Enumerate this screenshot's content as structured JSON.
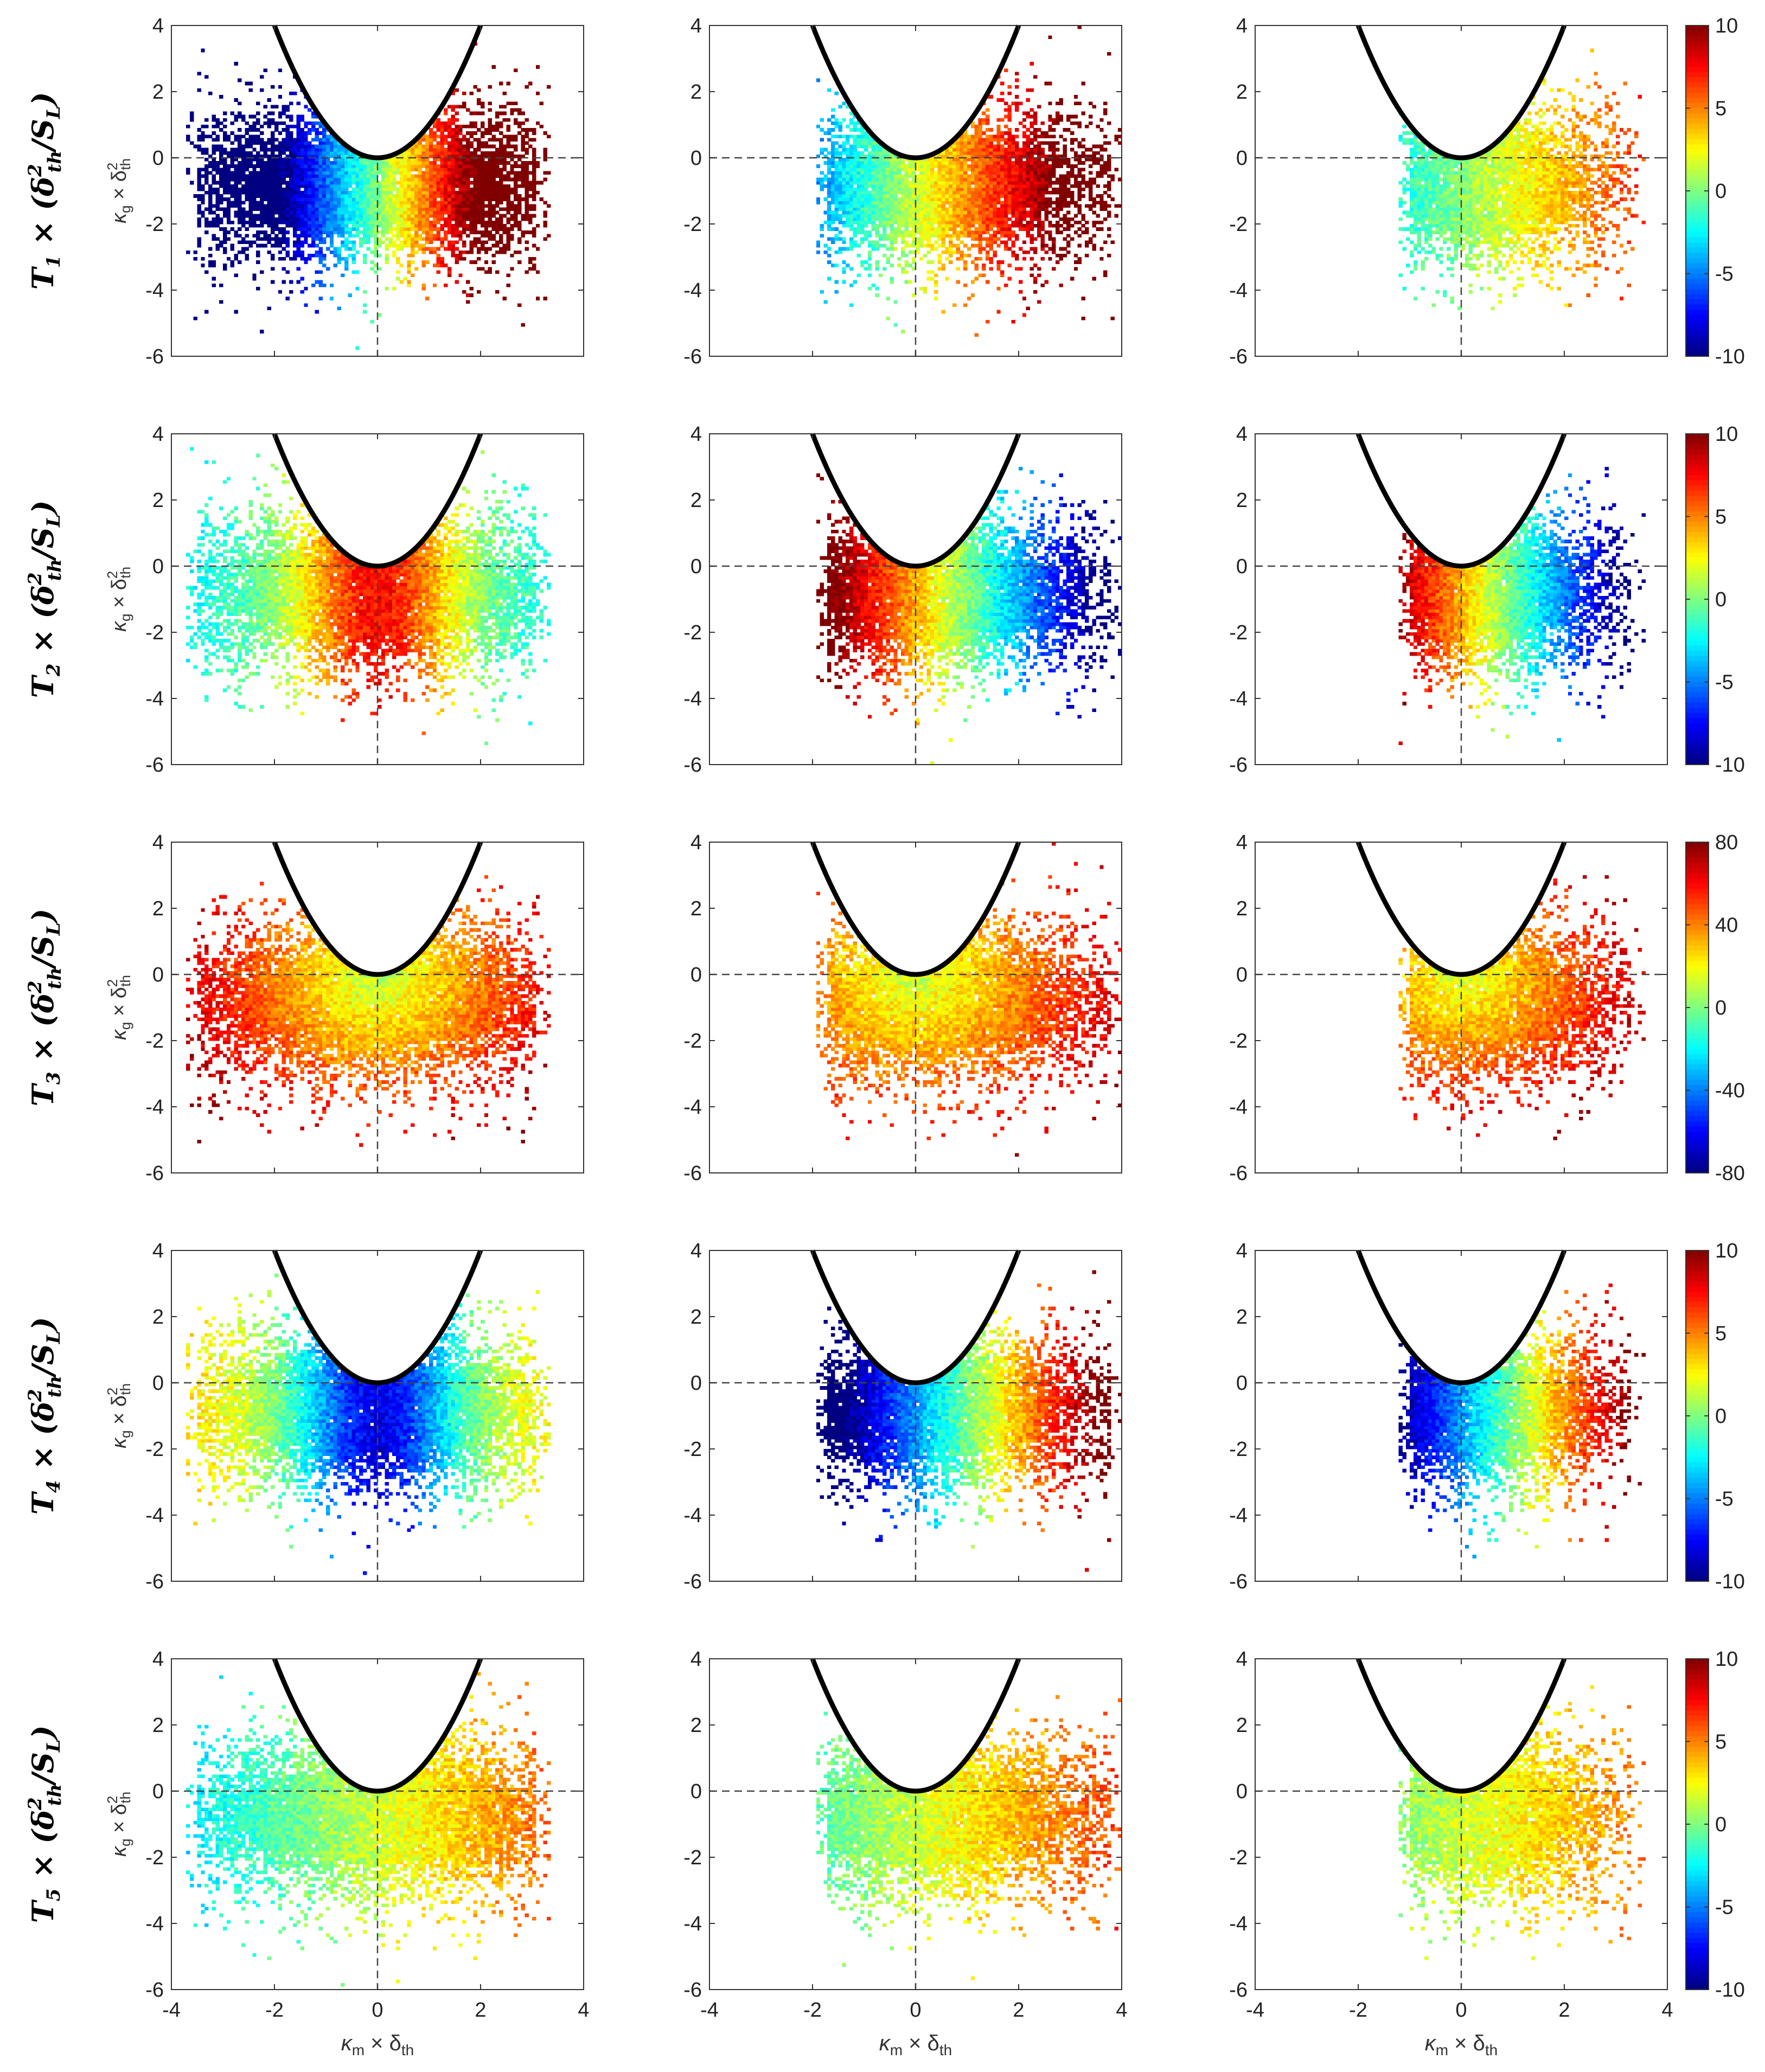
{
  "chart_data": {
    "type": "heatmap",
    "layout": {
      "rows": 5,
      "cols": 3
    },
    "x_axis": {
      "label": "κm × δth",
      "label_main": "κ",
      "label_sub": "m",
      "label_mid": " × δ",
      "label_sub2": "th",
      "lim": [
        -4,
        4
      ],
      "ticks": [
        -4,
        -2,
        0,
        2,
        4
      ]
    },
    "y_axis": {
      "label": "κg × δ²th",
      "label_main": "κ",
      "label_sub": "g",
      "label_mid": " × δ",
      "label_sup": "2",
      "label_sub2": "th",
      "lim": [
        -6,
        4
      ],
      "ticks": [
        -6,
        -4,
        -2,
        0,
        2,
        4
      ]
    },
    "boundary_curve": "κg = κm² (solid black parabola)",
    "reference_lines": "x = 0, y = 0 (dashed)",
    "colormap": "jet",
    "columns": [
      {
        "id": "col1",
        "kappa_m_range": [
          -3.5,
          3.1
        ]
      },
      {
        "id": "col2",
        "kappa_m_range": [
          -1.7,
          3.8
        ]
      },
      {
        "id": "col3",
        "kappa_m_range": [
          -1.0,
          3.3
        ]
      }
    ],
    "rows": [
      {
        "term": "T1",
        "row_label": {
          "pre": "T",
          "sub": "1",
          "rest": " × (δ",
          "sup": "2",
          "sub2": "th",
          "tail": "/S",
          "sub3": "L",
          "end": ")"
        },
        "colorbar": {
          "lim": [
            -10,
            10
          ],
          "ticks": [
            10,
            5,
            0,
            -5,
            -10
          ]
        },
        "panels": [
          {
            "trend": "linear_x",
            "a": 5.5,
            "c": 0
          },
          {
            "trend": "linear_x",
            "a": 3.2,
            "c": 1.5
          },
          {
            "trend": "linear_x",
            "a": 1.8,
            "c": 0.2
          }
        ]
      },
      {
        "term": "T2",
        "row_label": {
          "pre": "T",
          "sub": "2",
          "rest": " × (δ",
          "sup": "2",
          "sub2": "th",
          "tail": "/S",
          "sub3": "L",
          "end": ")"
        },
        "colorbar": {
          "lim": [
            -10,
            10
          ],
          "ticks": [
            10,
            5,
            0,
            -5,
            -10
          ]
        },
        "panels": [
          {
            "trend": "peak_x",
            "a": 7.5,
            "b": 2.6,
            "c": 0
          },
          {
            "trend": "linear_x",
            "a": -4.0,
            "c": 4.0
          },
          {
            "trend": "linear_x",
            "a": -4.5,
            "c": 4.0
          }
        ]
      },
      {
        "term": "T3",
        "row_label": {
          "pre": "T",
          "sub": "3",
          "rest": " × (δ",
          "sup": "2",
          "sub2": "th",
          "tail": "/S",
          "sub3": "L",
          "end": ")"
        },
        "colorbar": {
          "lim": [
            -80,
            80
          ],
          "ticks": [
            80,
            40,
            0,
            -40,
            -80
          ]
        },
        "panels": [
          {
            "trend": "radial",
            "a": 16,
            "c": 8
          },
          {
            "trend": "radial",
            "a": 14,
            "c": 10
          },
          {
            "trend": "radial",
            "a": 16,
            "c": 12
          }
        ]
      },
      {
        "term": "T4",
        "row_label": {
          "pre": "T",
          "sub": "4",
          "rest": " × (δ",
          "sup": "2",
          "sub2": "th",
          "tail": "/S",
          "sub3": "L",
          "end": ")"
        },
        "colorbar": {
          "lim": [
            -10,
            10
          ],
          "ticks": [
            10,
            5,
            0,
            -5,
            -10
          ]
        },
        "panels": [
          {
            "trend": "valley_x",
            "a": 8.0,
            "b": 2.5,
            "c": 0
          },
          {
            "trend": "linear_x",
            "a": 4.2,
            "c": -4.5
          },
          {
            "trend": "linear_x",
            "a": 4.5,
            "c": -4.5
          }
        ]
      },
      {
        "term": "T5",
        "row_label": {
          "pre": "T",
          "sub": "5",
          "rest": " × (δ",
          "sup": "2",
          "sub2": "th",
          "tail": "/S",
          "sub3": "L",
          "end": ")"
        },
        "colorbar": {
          "lim": [
            -10,
            10
          ],
          "ticks": [
            10,
            5,
            0,
            -5,
            -10
          ]
        },
        "panels": [
          {
            "trend": "linear_x",
            "a": 1.2,
            "c": 1.5
          },
          {
            "trend": "linear_x",
            "a": 1.2,
            "c": 1.5
          },
          {
            "trend": "linear_x",
            "a": 1.0,
            "c": 1.5
          }
        ]
      }
    ]
  }
}
